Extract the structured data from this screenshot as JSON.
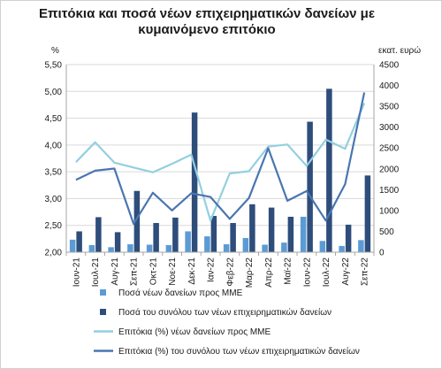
{
  "chart_data": {
    "type": "bar",
    "title_lines": [
      "Επιτόκια και ποσά νέων επιχειρηματικών δανείων με",
      "κυμαινόμενο επιτόκιο"
    ],
    "left_unit": "%",
    "right_unit": "εκατ. ευρώ",
    "left_ylim": [
      2.0,
      5.5
    ],
    "left_step": 0.5,
    "right_ylim": [
      0,
      4500
    ],
    "right_step": 500,
    "grid": true,
    "legend_position": "bottom",
    "categories": [
      "Ιουν-21",
      "Ιουλ-21",
      "Αυγ-21",
      "Σεπ-21",
      "Οκτ-21",
      "Νοε-21",
      "Δεκ-21",
      "Ιαν-22",
      "Φεβ-22",
      "Μαρ-22",
      "Απρ-22",
      "Μαϊ-22",
      "Ιουν-22",
      "Ιουλ-22",
      "Αυγ-22",
      "Σεπ-22"
    ],
    "series": [
      {
        "name": "Ποσά νέων δανείων προς ΜΜΕ",
        "type": "bar",
        "axis": "right",
        "color": "#5b9bd5",
        "values": [
          300,
          170,
          120,
          190,
          180,
          170,
          500,
          380,
          190,
          340,
          180,
          230,
          850,
          270,
          150,
          290
        ]
      },
      {
        "name": "Ποσά του συνόλου των νέων επιχειρηματικών δανείων",
        "type": "bar",
        "axis": "right",
        "color": "#2e4d7b",
        "values": [
          500,
          840,
          480,
          1470,
          700,
          830,
          3350,
          870,
          700,
          1150,
          1070,
          850,
          3130,
          3920,
          660,
          1840
        ]
      },
      {
        "name": "Επιτόκια (%) νέων δανείων προς ΜΜΕ",
        "type": "line",
        "axis": "left",
        "color": "#93cfe0",
        "values": [
          3.68,
          4.05,
          3.67,
          3.58,
          3.49,
          3.65,
          3.82,
          2.59,
          3.47,
          3.51,
          3.97,
          4.01,
          3.61,
          4.1,
          3.93,
          4.78
        ]
      },
      {
        "name": "Επιτόκια (%) του συνόλου των νέων επιχειρηματικών δανείων",
        "type": "line",
        "axis": "left",
        "color": "#4a76b0",
        "values": [
          3.35,
          3.52,
          3.56,
          2.53,
          3.11,
          2.78,
          3.1,
          3.03,
          2.62,
          3.01,
          3.94,
          2.96,
          3.14,
          2.59,
          3.27,
          4.98
        ]
      }
    ]
  }
}
